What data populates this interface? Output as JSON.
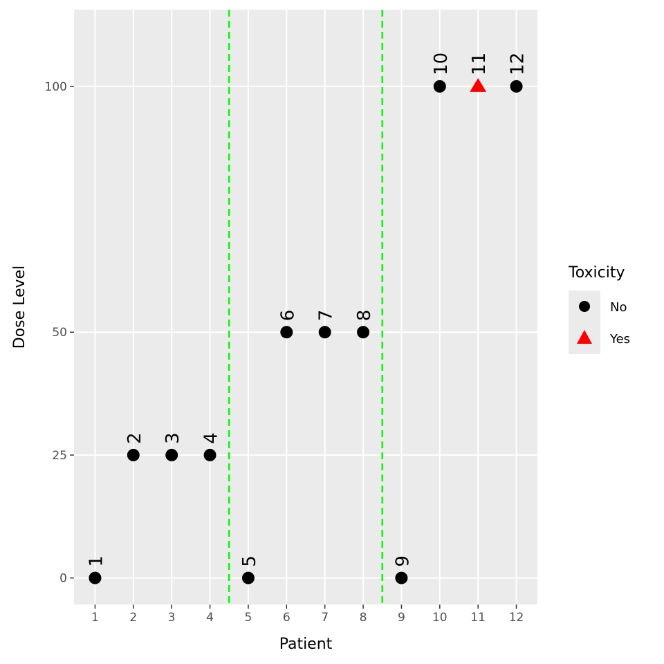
{
  "chart_data": {
    "type": "scatter",
    "xlabel": "Patient",
    "ylabel": "Dose Level",
    "xlim": [
      0.45,
      12.55
    ],
    "ylim": [
      -5.4,
      115.6
    ],
    "x_ticks": [
      1,
      2,
      3,
      4,
      5,
      6,
      7,
      8,
      9,
      10,
      11,
      12
    ],
    "y_ticks": [
      0,
      25,
      50,
      100
    ],
    "grid": true,
    "vlines": {
      "x": [
        4.5,
        8.5
      ],
      "color": "#00FF00",
      "style": "dashed"
    },
    "points": [
      {
        "x": 1,
        "y": 0,
        "label": "1",
        "toxicity": "No"
      },
      {
        "x": 2,
        "y": 25,
        "label": "2",
        "toxicity": "No"
      },
      {
        "x": 3,
        "y": 25,
        "label": "3",
        "toxicity": "No"
      },
      {
        "x": 4,
        "y": 25,
        "label": "4",
        "toxicity": "No"
      },
      {
        "x": 5,
        "y": 0,
        "label": "5",
        "toxicity": "No"
      },
      {
        "x": 6,
        "y": 50,
        "label": "6",
        "toxicity": "No"
      },
      {
        "x": 7,
        "y": 50,
        "label": "7",
        "toxicity": "No"
      },
      {
        "x": 8,
        "y": 50,
        "label": "8",
        "toxicity": "No"
      },
      {
        "x": 9,
        "y": 0,
        "label": "9",
        "toxicity": "No"
      },
      {
        "x": 10,
        "y": 100,
        "label": "10",
        "toxicity": "No"
      },
      {
        "x": 11,
        "y": 100,
        "label": "11",
        "toxicity": "Yes"
      },
      {
        "x": 12,
        "y": 100,
        "label": "12",
        "toxicity": "No"
      }
    ],
    "legend": {
      "title": "Toxicity",
      "placement": "right",
      "entries": [
        {
          "label": "No",
          "shape": "circle",
          "color": "#000000"
        },
        {
          "label": "Yes",
          "shape": "triangle",
          "color": "#FF0000"
        }
      ]
    },
    "panel_background": "#EBEBEB"
  }
}
